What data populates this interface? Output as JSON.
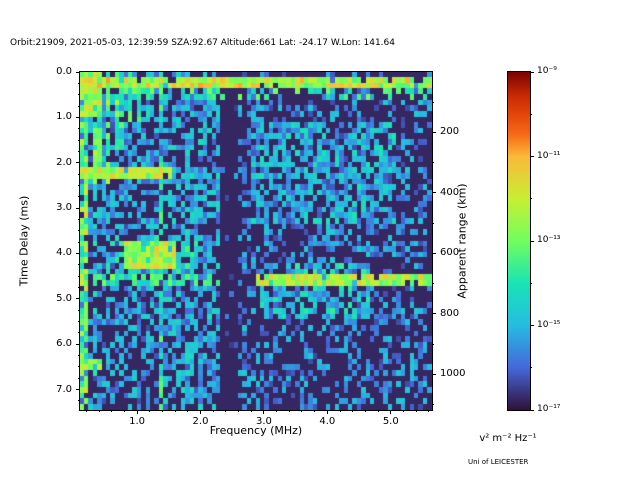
{
  "title": "Orbit:21909, 2021-05-03, 12:39:59 SZA:92.67 Altitude:661 Lat: -24.17 W.Lon: 141.64",
  "credit": "Uni of LEICESTER",
  "chart_data": {
    "type": "heatmap",
    "title": "Orbit:21909, 2021-05-03, 12:39:59 SZA:92.67 Altitude:661 Lat: -24.17 W.Lon: 141.64",
    "xlabel": "Frequency (MHz)",
    "ylabel_left": "Time Delay (ms)",
    "ylabel_right": "Apparent range (km)",
    "x_range": [
      0.1,
      5.65
    ],
    "y_range": [
      0.0,
      7.45
    ],
    "x_ticks": {
      "values": [
        1.0,
        2.0,
        3.0,
        4.0,
        5.0
      ],
      "labels": [
        "1.0",
        "2.0",
        "3.0",
        "4.0",
        "5.0"
      ],
      "minor_step": 0.2
    },
    "y_ticks_left": {
      "values": [
        0,
        1,
        2,
        3,
        4,
        5,
        6,
        7
      ],
      "labels": [
        "0.0",
        "1.0",
        "2.0",
        "3.0",
        "4.0",
        "5.0",
        "6.0",
        "7.0"
      ],
      "minor_step": 0.25
    },
    "y_ticks_right": {
      "values_km": [
        200,
        400,
        600,
        800,
        1000
      ],
      "labels": [
        "200",
        "400",
        "600",
        "800",
        "1000"
      ],
      "km_per_ms": 150
    },
    "colorbar": {
      "scale": "log",
      "tick_labels": [
        "10⁻⁹",
        "10⁻¹¹",
        "10⁻¹³",
        "10⁻¹⁵",
        "10⁻¹⁷"
      ],
      "units": "v² m⁻² Hz⁻¹",
      "colormap": "turbo",
      "stops": [
        {
          "p": 0.0,
          "c": "#30123b"
        },
        {
          "p": 0.125,
          "c": "#4669db"
        },
        {
          "p": 0.25,
          "c": "#26bce1"
        },
        {
          "p": 0.375,
          "c": "#1ae4b6"
        },
        {
          "p": 0.5,
          "c": "#72fe5e"
        },
        {
          "p": 0.625,
          "c": "#c8ef34"
        },
        {
          "p": 0.75,
          "c": "#faba39"
        },
        {
          "p": 0.815,
          "c": "#f66b19"
        },
        {
          "p": 0.875,
          "c": "#e4460a"
        },
        {
          "p": 0.93,
          "c": "#ca2a04"
        },
        {
          "p": 1.0,
          "c": "#7a0403"
        }
      ]
    },
    "grid": {
      "cols": 80,
      "rows": 60,
      "seed": 1337
    },
    "background_level": 0.03,
    "features": [
      {
        "name": "speckle-left",
        "f": [
          0.1,
          1.45
        ],
        "t": [
          0,
          7.45
        ],
        "d": 0.5,
        "v": [
          0.08,
          0.32
        ]
      },
      {
        "name": "speckle-mid",
        "f": [
          1.45,
          2.35
        ],
        "t": [
          0,
          7.45
        ],
        "d": 0.55,
        "v": [
          0.1,
          0.36
        ]
      },
      {
        "name": "speckle-quiet-gap",
        "f": [
          2.35,
          2.62
        ],
        "t": [
          0,
          7.45
        ],
        "d": 0.08,
        "v": [
          0.06,
          0.18
        ]
      },
      {
        "name": "speckle-right",
        "f": [
          2.62,
          5.65
        ],
        "t": [
          0,
          7.45
        ],
        "d": 0.35,
        "v": [
          0.08,
          0.3
        ]
      },
      {
        "name": "diffuse-right-upper",
        "f": [
          2.8,
          5.1
        ],
        "t": [
          1.1,
          3.3
        ],
        "d": 0.45,
        "v": [
          0.12,
          0.38
        ]
      },
      {
        "name": "diffuse-right-echo",
        "f": [
          2.95,
          4.7
        ],
        "t": [
          4.2,
          5.5
        ],
        "d": 0.5,
        "v": [
          0.15,
          0.42
        ]
      },
      {
        "name": "surface-band-top",
        "f": [
          0.1,
          5.65
        ],
        "t": [
          0.13,
          0.42
        ],
        "d": 0.92,
        "v": [
          0.45,
          0.78
        ]
      },
      {
        "name": "top-band-scatter",
        "f": [
          0.1,
          5.65
        ],
        "t": [
          0.42,
          0.68
        ],
        "d": 0.25,
        "v": [
          0.28,
          0.52
        ]
      },
      {
        "name": "topleft-cluster",
        "f": [
          0.1,
          0.42
        ],
        "t": [
          0.0,
          0.95
        ],
        "d": 0.8,
        "v": [
          0.4,
          0.7
        ]
      },
      {
        "name": "plasma-line",
        "f": [
          0.13,
          0.21
        ],
        "t": [
          0,
          7.45
        ],
        "d": 0.85,
        "v": [
          0.32,
          0.68
        ]
      },
      {
        "name": "plasma-harmonic",
        "f": [
          0.21,
          0.27
        ],
        "t": [
          0,
          7.45
        ],
        "d": 0.6,
        "v": [
          0.25,
          0.55
        ]
      },
      {
        "name": "plasma-harmonic",
        "f": [
          0.3,
          0.37
        ],
        "t": [
          0,
          2.45
        ],
        "d": 0.8,
        "v": [
          0.35,
          0.65
        ]
      },
      {
        "name": "plasma-harmonic",
        "f": [
          0.3,
          0.37
        ],
        "t": [
          2.45,
          7.45
        ],
        "d": 0.45,
        "v": [
          0.18,
          0.4
        ]
      },
      {
        "name": "plasma-harmonic",
        "f": [
          0.41,
          0.48
        ],
        "t": [
          0,
          2.45
        ],
        "d": 0.78,
        "v": [
          0.33,
          0.62
        ]
      },
      {
        "name": "plasma-harmonic",
        "f": [
          0.52,
          0.59
        ],
        "t": [
          0,
          2.45
        ],
        "d": 0.72,
        "v": [
          0.3,
          0.6
        ]
      },
      {
        "name": "plasma-harmonic",
        "f": [
          0.63,
          0.7
        ],
        "t": [
          0,
          1.7
        ],
        "d": 0.7,
        "v": [
          0.3,
          0.58
        ]
      },
      {
        "name": "plasma-harmonic",
        "f": [
          0.75,
          0.82
        ],
        "t": [
          0,
          1.7
        ],
        "d": 0.68,
        "v": [
          0.3,
          0.56
        ]
      },
      {
        "name": "plasma-harmonic",
        "f": [
          0.87,
          0.94
        ],
        "t": [
          0,
          1.15
        ],
        "d": 0.62,
        "v": [
          0.28,
          0.52
        ]
      },
      {
        "name": "plasma-harmonic",
        "f": [
          0.99,
          1.06
        ],
        "t": [
          0,
          1.15
        ],
        "d": 0.58,
        "v": [
          0.26,
          0.5
        ]
      },
      {
        "name": "plasma-harmonic",
        "f": [
          1.11,
          1.18
        ],
        "t": [
          0,
          0.95
        ],
        "d": 0.55,
        "v": [
          0.25,
          0.48
        ]
      },
      {
        "name": "plasma-harmonic",
        "f": [
          1.23,
          1.3
        ],
        "t": [
          0,
          0.95
        ],
        "d": 0.5,
        "v": [
          0.24,
          0.45
        ]
      },
      {
        "name": "stripe-1p4",
        "f": [
          1.35,
          1.43
        ],
        "t": [
          0,
          7.45
        ],
        "d": 0.75,
        "v": [
          0.22,
          0.5
        ]
      },
      {
        "name": "cyclotron-band",
        "f": [
          0.1,
          1.55
        ],
        "t": [
          2.08,
          2.38
        ],
        "d": 0.92,
        "v": [
          0.45,
          0.72
        ]
      },
      {
        "name": "cyclotron-band-faint",
        "f": [
          1.55,
          5.65
        ],
        "t": [
          2.08,
          2.3
        ],
        "d": 0.25,
        "v": [
          0.15,
          0.35
        ]
      },
      {
        "name": "ionosphere-blob",
        "f": [
          0.55,
          1.95
        ],
        "t": [
          3.55,
          4.5
        ],
        "d": 0.55,
        "v": [
          0.18,
          0.45
        ]
      },
      {
        "name": "ionosphere-blob-core",
        "f": [
          0.8,
          1.62
        ],
        "t": [
          3.78,
          4.3
        ],
        "d": 0.85,
        "v": [
          0.45,
          0.75
        ]
      },
      {
        "name": "echo-line",
        "f": [
          0.1,
          2.35
        ],
        "t": [
          4.42,
          4.68
        ],
        "d": 0.55,
        "v": [
          0.3,
          0.52
        ]
      },
      {
        "name": "echo-line-bright",
        "f": [
          2.85,
          5.65
        ],
        "t": [
          4.42,
          4.68
        ],
        "d": 0.9,
        "v": [
          0.45,
          0.72
        ]
      },
      {
        "name": "lower-left-segment",
        "f": [
          0.1,
          0.44
        ],
        "t": [
          6.28,
          6.55
        ],
        "d": 0.88,
        "v": [
          0.42,
          0.62
        ]
      }
    ]
  }
}
